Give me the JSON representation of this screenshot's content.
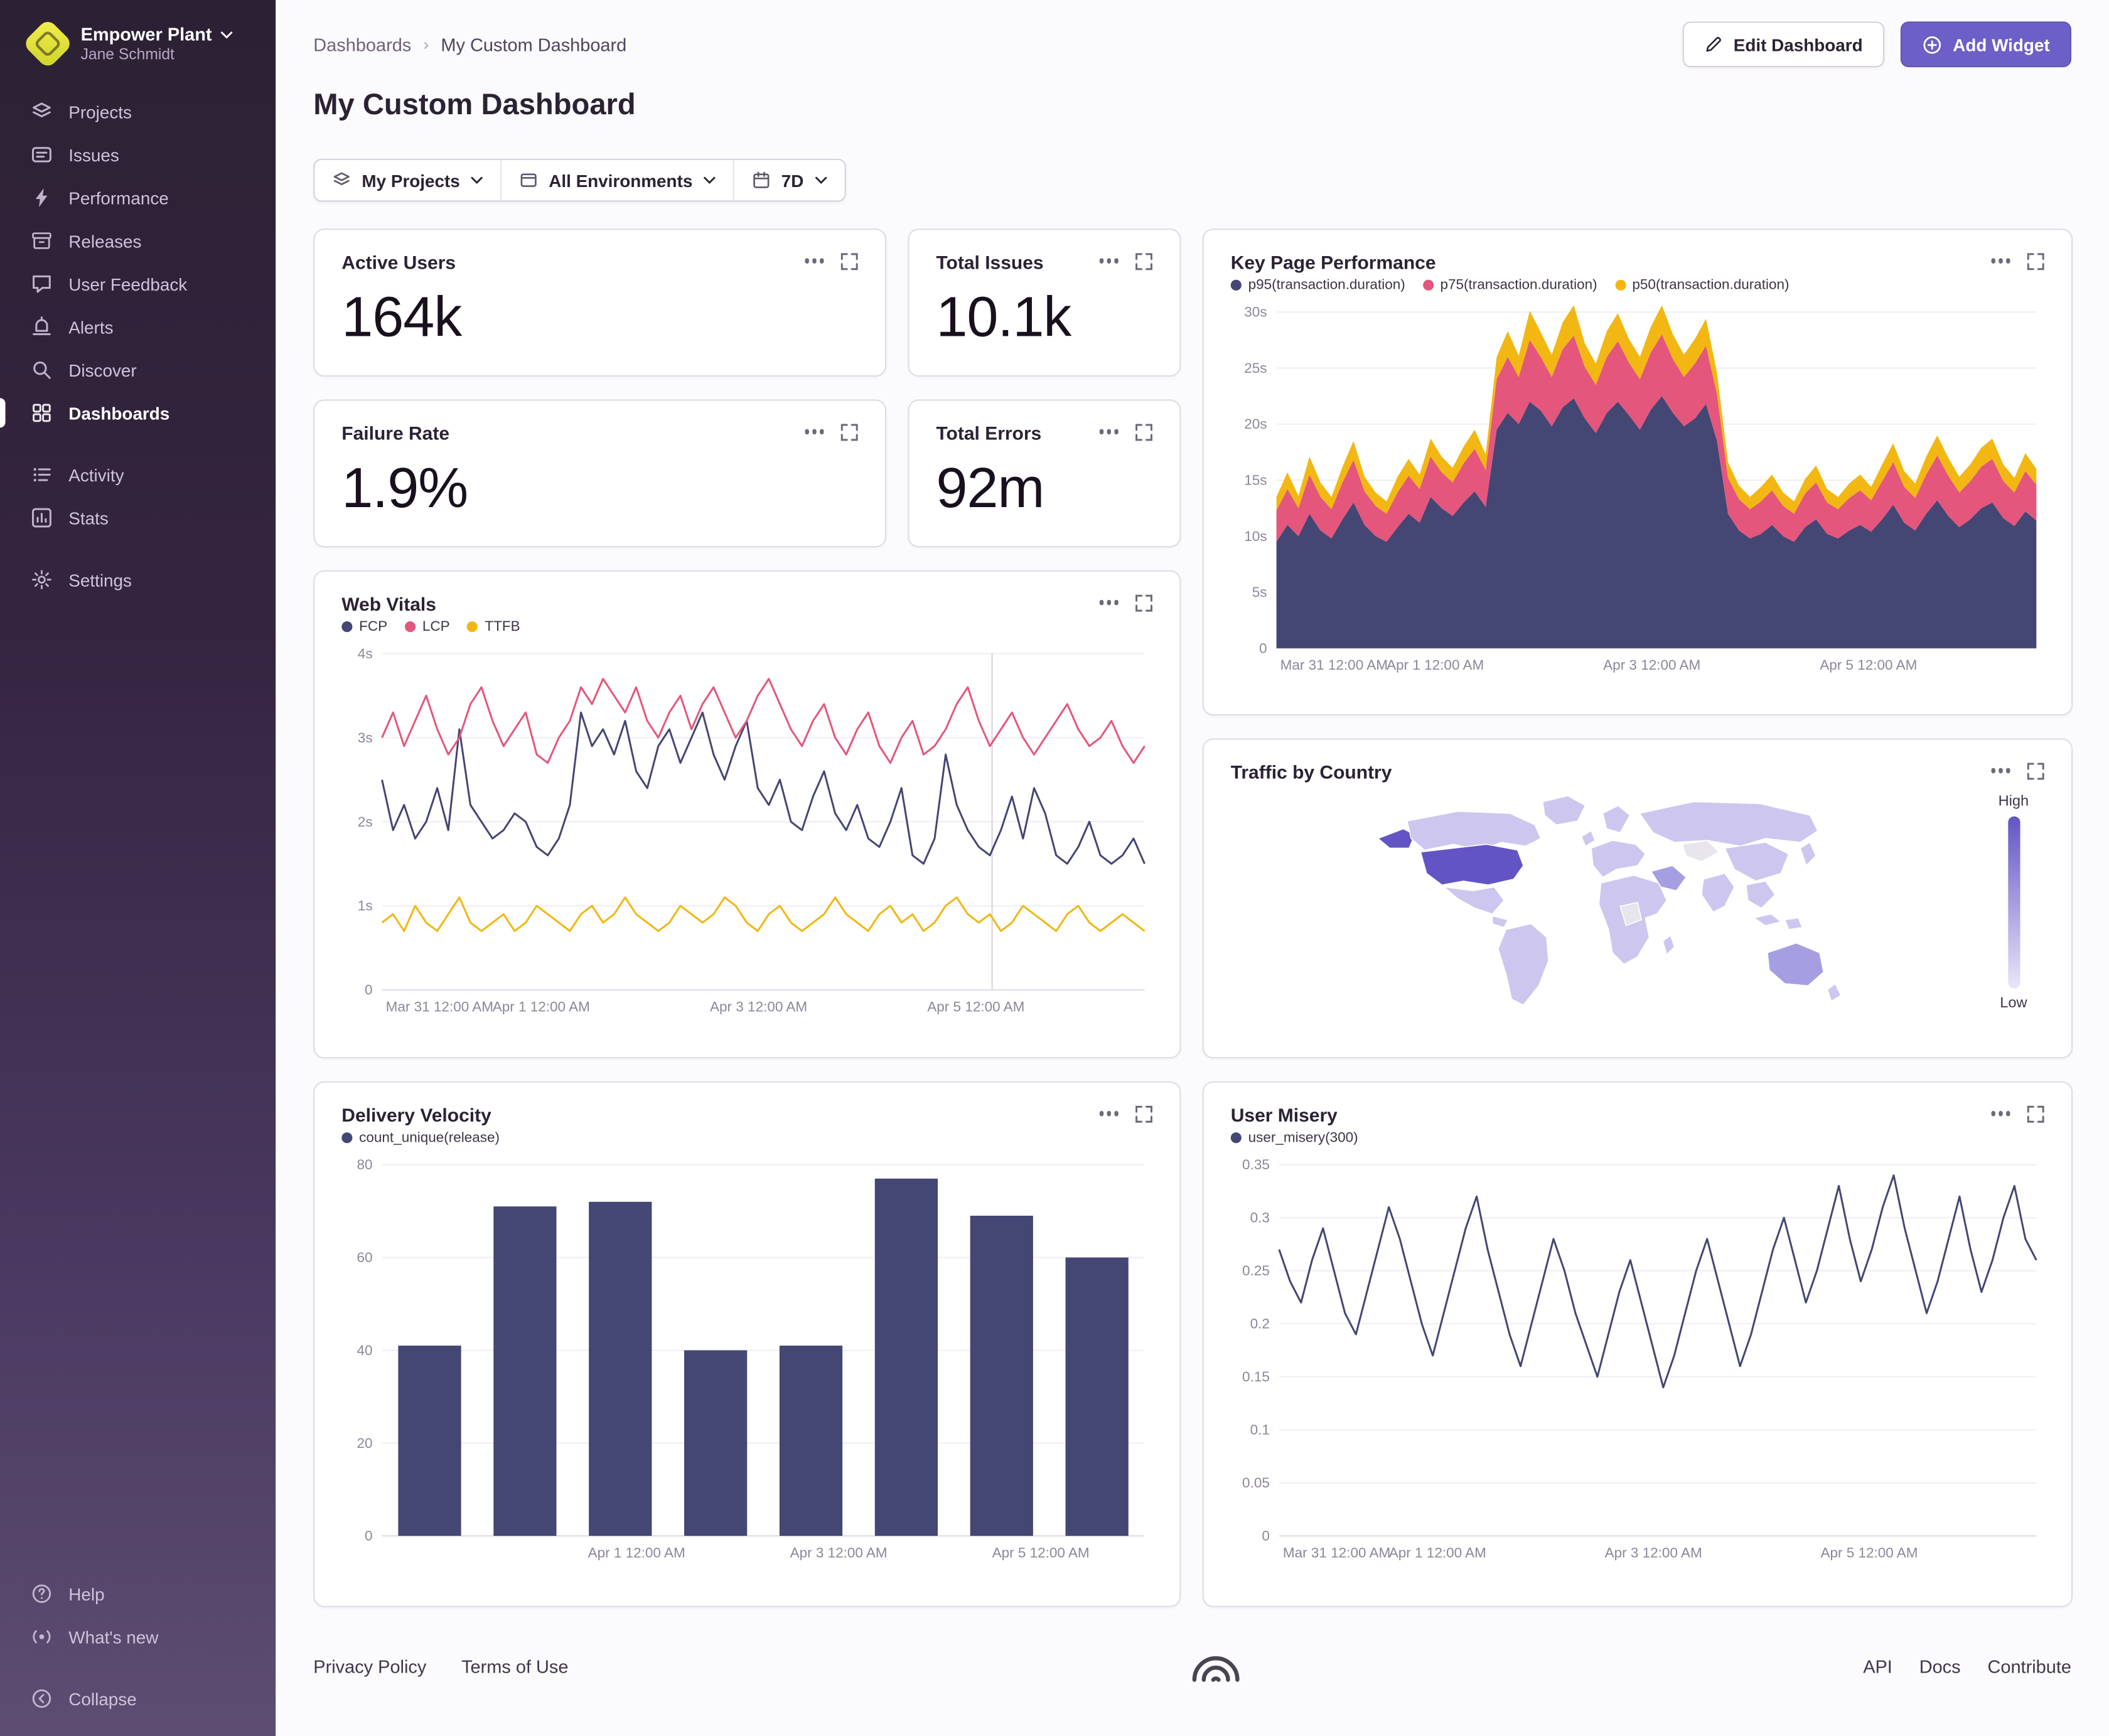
{
  "sidebar": {
    "org_name": "Empower Plant",
    "org_user": "Jane Schmidt",
    "items": [
      "Projects",
      "Issues",
      "Performance",
      "Releases",
      "User Feedback",
      "Alerts",
      "Discover",
      "Dashboards"
    ],
    "secondary": [
      "Activity",
      "Stats"
    ],
    "settings_label": "Settings",
    "bottom": [
      "Help",
      "What's new",
      "Collapse"
    ]
  },
  "header": {
    "breadcrumb_root": "Dashboards",
    "breadcrumb_current": "My Custom Dashboard",
    "title": "My Custom Dashboard",
    "edit_label": "Edit Dashboard",
    "add_label": "Add Widget"
  },
  "filters": {
    "projects": "My Projects",
    "environments": "All Environments",
    "date_range": "7D"
  },
  "widgets": {
    "active_users": {
      "title": "Active Users",
      "value": "164k"
    },
    "total_issues": {
      "title": "Total Issues",
      "value": "10.1k"
    },
    "failure_rate": {
      "title": "Failure Rate",
      "value": "1.9%"
    },
    "total_errors": {
      "title": "Total Errors",
      "value": "92m"
    },
    "key_page": {
      "title": "Key Page Performance"
    },
    "web_vitals": {
      "title": "Web Vitals"
    },
    "traffic": {
      "title": "Traffic by Country",
      "legend_high": "High",
      "legend_low": "Low"
    },
    "delivery": {
      "title": "Delivery Velocity"
    },
    "user_misery": {
      "title": "User Misery"
    }
  },
  "footer": {
    "privacy": "Privacy Policy",
    "terms": "Terms of Use",
    "api": "API",
    "docs": "Docs",
    "contribute": "Contribute"
  },
  "chart_data": [
    {
      "id": "key-page",
      "type": "area",
      "stacked": true,
      "title": "Key Page Performance",
      "ylim": [
        0,
        30
      ],
      "yticks": [
        {
          "v": 0,
          "label": "0"
        },
        {
          "v": 5,
          "label": "5s"
        },
        {
          "v": 10,
          "label": "10s"
        },
        {
          "v": 15,
          "label": "15s"
        },
        {
          "v": 20,
          "label": "20s"
        },
        {
          "v": 25,
          "label": "25s"
        },
        {
          "v": 30,
          "label": "30s"
        }
      ],
      "xticks": [
        {
          "f": 0.005,
          "label": "Mar 31 12:00 AM"
        },
        {
          "f": 0.145,
          "label": "Apr 1 12:00 AM"
        },
        {
          "f": 0.43,
          "label": "Apr 3 12:00 AM"
        },
        {
          "f": 0.715,
          "label": "Apr 5 12:00 AM"
        }
      ],
      "series": [
        {
          "name": "p95(transaction.duration)",
          "color": "#444674",
          "values": [
            9.5,
            11,
            10,
            12,
            10.5,
            9.8,
            11.5,
            13,
            11,
            10,
            9.5,
            10.8,
            12,
            11.2,
            13.5,
            12.5,
            11.8,
            13,
            14,
            12.6,
            19.5,
            21,
            20,
            22,
            21.2,
            19.8,
            21.5,
            22.3,
            20.5,
            19.2,
            21,
            22,
            20.8,
            19.5,
            21.3,
            22.5,
            21,
            19.8,
            20.5,
            21.8,
            18.5,
            12,
            10.5,
            9.8,
            10.2,
            11,
            10,
            9.5,
            10.8,
            11.5,
            10.2,
            9.8,
            10.5,
            11,
            10.4,
            11.5,
            12.8,
            11.2,
            10.5,
            12,
            13.2,
            11.8,
            10.8,
            11.5,
            12.5,
            13,
            11.6,
            10.9,
            12.2,
            11.4
          ]
        },
        {
          "name": "p75(transaction.duration)",
          "color": "#e4567b",
          "values": [
            2.8,
            3.2,
            2.5,
            3.5,
            3,
            2.6,
            3.3,
            3.8,
            3,
            2.7,
            2.5,
            3.1,
            3.4,
            3,
            3.6,
            3.2,
            3,
            3.5,
            3.8,
            3.3,
            4.5,
            5,
            4.2,
            5.5,
            4.8,
            4.4,
            5.2,
            5.6,
            4.6,
            4.3,
            5,
            5.4,
            4.7,
            4.5,
            5.1,
            5.5,
            4.8,
            4.4,
            4.9,
            5.2,
            4.2,
            3.2,
            2.8,
            2.6,
            2.9,
            3.1,
            2.7,
            2.5,
            3,
            3.3,
            2.8,
            2.6,
            2.9,
            3.1,
            2.8,
            3.4,
            3.8,
            3.2,
            2.9,
            3.5,
            4,
            3.6,
            3.1,
            3.4,
            3.7,
            3.9,
            3.3,
            3,
            3.6,
            3.2
          ]
        },
        {
          "name": "p50(transaction.duration)",
          "color": "#f2b712",
          "values": [
            1.2,
            1.5,
            1.1,
            1.6,
            1.3,
            1.1,
            1.4,
            1.7,
            1.3,
            1.2,
            1.1,
            1.4,
            1.5,
            1.3,
            1.6,
            1.4,
            1.3,
            1.5,
            1.7,
            1.4,
            2,
            2.3,
            1.9,
            2.6,
            2.2,
            2,
            2.4,
            2.7,
            2.1,
            1.9,
            2.3,
            2.5,
            2.1,
            2,
            2.3,
            2.6,
            2.2,
            2,
            2.2,
            2.4,
            1.9,
            1.4,
            1.2,
            1.1,
            1.3,
            1.4,
            1.2,
            1.1,
            1.3,
            1.5,
            1.2,
            1.1,
            1.3,
            1.4,
            1.2,
            1.5,
            1.7,
            1.4,
            1.3,
            1.6,
            1.8,
            1.6,
            1.4,
            1.5,
            1.7,
            1.8,
            1.5,
            1.3,
            1.6,
            1.4
          ]
        }
      ]
    },
    {
      "id": "web-vitals",
      "type": "line",
      "title": "Web Vitals",
      "ylim": [
        0,
        4
      ],
      "cursor_f": 0.8,
      "yticks": [
        {
          "v": 0,
          "label": "0"
        },
        {
          "v": 1,
          "label": "1s"
        },
        {
          "v": 2,
          "label": "2s"
        },
        {
          "v": 3,
          "label": "3s"
        },
        {
          "v": 4,
          "label": "4s"
        }
      ],
      "xticks": [
        {
          "f": 0.005,
          "label": "Mar 31 12:00 AM"
        },
        {
          "f": 0.145,
          "label": "Apr 1 12:00 AM"
        },
        {
          "f": 0.43,
          "label": "Apr 3 12:00 AM"
        },
        {
          "f": 0.715,
          "label": "Apr 5 12:00 AM"
        }
      ],
      "series": [
        {
          "name": "FCP",
          "color": "#444674",
          "values": [
            2.5,
            1.9,
            2.2,
            1.8,
            2.0,
            2.4,
            1.9,
            3.1,
            2.2,
            2.0,
            1.8,
            1.9,
            2.1,
            2.0,
            1.7,
            1.6,
            1.8,
            2.2,
            3.3,
            2.9,
            3.1,
            2.8,
            3.2,
            2.6,
            2.4,
            2.9,
            3.1,
            2.7,
            3.0,
            3.3,
            2.8,
            2.5,
            2.9,
            3.2,
            2.4,
            2.2,
            2.5,
            2.0,
            1.9,
            2.3,
            2.6,
            2.1,
            1.9,
            2.2,
            1.8,
            1.7,
            2.0,
            2.4,
            1.6,
            1.5,
            1.8,
            2.8,
            2.2,
            1.9,
            1.7,
            1.6,
            1.9,
            2.3,
            1.8,
            2.4,
            2.1,
            1.6,
            1.5,
            1.7,
            2.0,
            1.6,
            1.5,
            1.6,
            1.8,
            1.5
          ]
        },
        {
          "name": "LCP",
          "color": "#e4567b",
          "values": [
            3.0,
            3.3,
            2.9,
            3.2,
            3.5,
            3.1,
            2.8,
            3.0,
            3.4,
            3.6,
            3.2,
            2.9,
            3.1,
            3.3,
            2.8,
            2.7,
            3.0,
            3.2,
            3.6,
            3.4,
            3.7,
            3.5,
            3.3,
            3.6,
            3.2,
            3.0,
            3.3,
            3.5,
            3.1,
            3.4,
            3.6,
            3.3,
            3.0,
            3.2,
            3.5,
            3.7,
            3.4,
            3.1,
            2.9,
            3.2,
            3.4,
            3.0,
            2.8,
            3.1,
            3.3,
            2.9,
            2.7,
            3.0,
            3.2,
            2.8,
            2.9,
            3.1,
            3.4,
            3.6,
            3.2,
            2.9,
            3.1,
            3.3,
            3.0,
            2.8,
            3.0,
            3.2,
            3.4,
            3.1,
            2.9,
            3.0,
            3.2,
            2.9,
            2.7,
            2.9
          ]
        },
        {
          "name": "TTFB",
          "color": "#f2b712",
          "values": [
            0.8,
            0.9,
            0.7,
            1.0,
            0.8,
            0.7,
            0.9,
            1.1,
            0.8,
            0.7,
            0.8,
            0.9,
            0.7,
            0.8,
            1.0,
            0.9,
            0.8,
            0.7,
            0.9,
            1.0,
            0.8,
            0.9,
            1.1,
            0.9,
            0.8,
            0.7,
            0.8,
            1.0,
            0.9,
            0.8,
            0.9,
            1.1,
            1.0,
            0.8,
            0.7,
            0.9,
            1.0,
            0.8,
            0.7,
            0.8,
            0.9,
            1.1,
            0.9,
            0.8,
            0.7,
            0.9,
            1.0,
            0.8,
            0.9,
            0.7,
            0.8,
            1.0,
            1.1,
            0.9,
            0.8,
            0.9,
            0.7,
            0.8,
            1.0,
            0.9,
            0.8,
            0.7,
            0.9,
            1.0,
            0.8,
            0.7,
            0.8,
            0.9,
            0.8,
            0.7
          ]
        }
      ]
    },
    {
      "id": "delivery",
      "type": "bar",
      "title": "Delivery Velocity",
      "ylim": [
        0,
        80
      ],
      "yticks": [
        {
          "v": 0,
          "label": "0"
        },
        {
          "v": 20,
          "label": "20"
        },
        {
          "v": 40,
          "label": "40"
        },
        {
          "v": 60,
          "label": "60"
        },
        {
          "v": 80,
          "label": "80"
        }
      ],
      "xticks": [
        {
          "f": 0.27,
          "label": "Apr 1 12:00 AM"
        },
        {
          "f": 0.535,
          "label": "Apr 3 12:00 AM"
        },
        {
          "f": 0.8,
          "label": "Apr 5 12:00 AM"
        }
      ],
      "series": [
        {
          "name": "count_unique(release)",
          "color": "#444674",
          "values": [
            41,
            71,
            72,
            40,
            41,
            77,
            69,
            60
          ]
        }
      ]
    },
    {
      "id": "user-misery",
      "type": "line",
      "title": "User Misery",
      "ylim": [
        0,
        0.35
      ],
      "yticks": [
        {
          "v": 0,
          "label": "0"
        },
        {
          "v": 0.05,
          "label": "0.05"
        },
        {
          "v": 0.1,
          "label": "0.1"
        },
        {
          "v": 0.15,
          "label": "0.15"
        },
        {
          "v": 0.2,
          "label": "0.2"
        },
        {
          "v": 0.25,
          "label": "0.25"
        },
        {
          "v": 0.3,
          "label": "0.3"
        },
        {
          "v": 0.35,
          "label": "0.35"
        }
      ],
      "xticks": [
        {
          "f": 0.005,
          "label": "Mar 31 12:00 AM"
        },
        {
          "f": 0.145,
          "label": "Apr 1 12:00 AM"
        },
        {
          "f": 0.43,
          "label": "Apr 3 12:00 AM"
        },
        {
          "f": 0.715,
          "label": "Apr 5 12:00 AM"
        }
      ],
      "series": [
        {
          "name": "user_misery(300)",
          "color": "#444674",
          "values": [
            0.27,
            0.24,
            0.22,
            0.26,
            0.29,
            0.25,
            0.21,
            0.19,
            0.23,
            0.27,
            0.31,
            0.28,
            0.24,
            0.2,
            0.17,
            0.21,
            0.25,
            0.29,
            0.32,
            0.27,
            0.23,
            0.19,
            0.16,
            0.2,
            0.24,
            0.28,
            0.25,
            0.21,
            0.18,
            0.15,
            0.19,
            0.23,
            0.26,
            0.22,
            0.18,
            0.14,
            0.17,
            0.21,
            0.25,
            0.28,
            0.24,
            0.2,
            0.16,
            0.19,
            0.23,
            0.27,
            0.3,
            0.26,
            0.22,
            0.25,
            0.29,
            0.33,
            0.28,
            0.24,
            0.27,
            0.31,
            0.34,
            0.29,
            0.25,
            0.21,
            0.24,
            0.28,
            0.32,
            0.27,
            0.23,
            0.26,
            0.3,
            0.33,
            0.28,
            0.26
          ]
        }
      ]
    },
    {
      "id": "traffic-map",
      "type": "choropleth",
      "title": "Traffic by Country",
      "legend": {
        "high": "High",
        "low": "Low"
      },
      "colors": {
        "high": "#6254c4",
        "mid": "#a59fe2",
        "low": "#cdc7ef",
        "none": "#e8e6ec"
      },
      "highlight": "United States"
    }
  ]
}
